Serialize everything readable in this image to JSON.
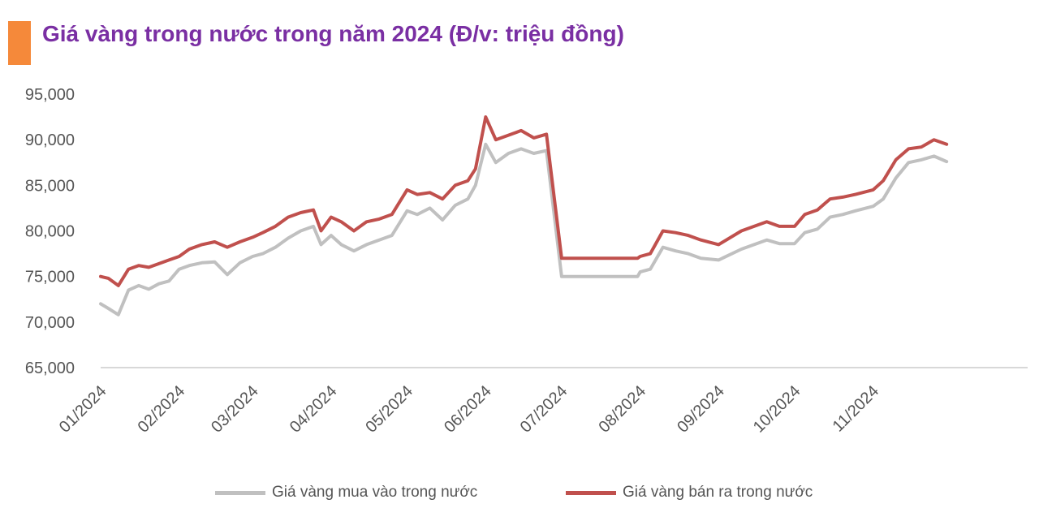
{
  "title": "Giá vàng trong nước trong năm 2024 (Đ/v: triệu đồng)",
  "colors": {
    "title": "#7a2fa3",
    "accent_bar": "#f5893a",
    "buy": "#c0c0c0",
    "sell": "#c0504d",
    "axis": "#cccccc",
    "text": "#555555"
  },
  "legend": [
    "Giá vàng mua vào trong nước",
    "Giá vàng bán ra trong nước"
  ],
  "chart_data": {
    "type": "line",
    "title": "Giá vàng trong nước trong năm 2024 (Đ/v: triệu đồng)",
    "xlabel": "",
    "ylabel": "",
    "ylim": [
      65000,
      95000
    ],
    "yticks": [
      "65,000",
      "70,000",
      "75,000",
      "80,000",
      "85,000",
      "90,000",
      "95,000"
    ],
    "xtick_labels": [
      "01/2024",
      "02/2024",
      "03/2024",
      "04/2024",
      "05/2024",
      "06/2024",
      "07/2024",
      "08/2024",
      "09/2024",
      "10/2024",
      "11/2024"
    ],
    "grid": false,
    "legend_position": "bottom",
    "x": [
      "01/01",
      "01/04",
      "01/08",
      "01/12",
      "01/16",
      "01/20",
      "01/24",
      "01/28",
      "02/01",
      "02/05",
      "02/10",
      "02/15",
      "02/20",
      "02/25",
      "03/01",
      "03/05",
      "03/10",
      "03/15",
      "03/20",
      "03/25",
      "03/28",
      "04/01",
      "04/05",
      "04/10",
      "04/15",
      "04/20",
      "04/25",
      "05/01",
      "05/05",
      "05/10",
      "05/15",
      "05/20",
      "05/25",
      "05/28",
      "06/01",
      "06/05",
      "06/10",
      "06/15",
      "06/20",
      "06/25",
      "07/01",
      "07/10",
      "07/20",
      "07/31",
      "08/01",
      "08/05",
      "08/10",
      "08/15",
      "08/20",
      "08/25",
      "09/01",
      "09/10",
      "09/20",
      "09/25",
      "10/01",
      "10/05",
      "10/10",
      "10/15",
      "10/20",
      "10/25",
      "11/01",
      "11/05",
      "11/10",
      "11/15",
      "11/20",
      "11/25",
      "11/30"
    ],
    "series": [
      {
        "name": "Giá vàng mua vào trong nước",
        "color": "#c0c0c0",
        "values": [
          72000,
          71500,
          70800,
          73500,
          74000,
          73600,
          74200,
          74500,
          75800,
          76200,
          76500,
          76600,
          75200,
          76500,
          77200,
          77500,
          78200,
          79200,
          80000,
          80500,
          78500,
          79500,
          78500,
          77800,
          78500,
          79000,
          79500,
          82200,
          81800,
          82500,
          81200,
          82800,
          83500,
          85000,
          89500,
          87500,
          88500,
          89000,
          88500,
          88800,
          75000,
          75000,
          75000,
          75000,
          75500,
          75800,
          78200,
          77800,
          77500,
          77000,
          76800,
          78000,
          79000,
          78600,
          78600,
          79800,
          80200,
          81500,
          81800,
          82200,
          82700,
          83500,
          85800,
          87500,
          87800,
          88200,
          87600
        ]
      },
      {
        "name": "Giá vàng bán ra trong nước",
        "color": "#c0504d",
        "values": [
          75000,
          74800,
          74000,
          75800,
          76200,
          76000,
          76400,
          76800,
          77200,
          78000,
          78500,
          78800,
          78200,
          78800,
          79300,
          79800,
          80500,
          81500,
          82000,
          82300,
          80000,
          81500,
          81000,
          80000,
          81000,
          81300,
          81800,
          84500,
          84000,
          84200,
          83500,
          85000,
          85500,
          86800,
          92500,
          90000,
          90500,
          91000,
          90200,
          90600,
          77000,
          77000,
          77000,
          77000,
          77200,
          77500,
          80000,
          79800,
          79500,
          79000,
          78500,
          80000,
          81000,
          80500,
          80500,
          81800,
          82300,
          83500,
          83700,
          84000,
          84500,
          85500,
          87800,
          89000,
          89200,
          90000,
          89500
        ]
      }
    ]
  }
}
